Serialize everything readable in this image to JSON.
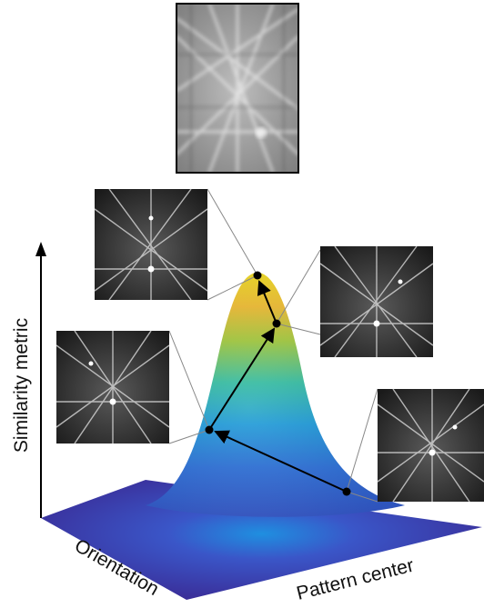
{
  "figure": {
    "axes": {
      "vertical_label": "Similarity metric",
      "left_floor_label": "Orientation",
      "right_floor_label": "Pattern center"
    },
    "patterns": [
      {
        "name": "experimental-pattern",
        "role": "reference pattern",
        "style": "blurred"
      },
      {
        "name": "simulated-pattern-top-left",
        "role": "simulated pattern",
        "style": "sharp"
      },
      {
        "name": "simulated-pattern-top-right",
        "role": "simulated pattern",
        "style": "sharp"
      },
      {
        "name": "simulated-pattern-mid-left",
        "role": "simulated pattern",
        "style": "sharp"
      },
      {
        "name": "simulated-pattern-bottom-right",
        "role": "simulated pattern",
        "style": "sharp"
      }
    ],
    "optimization_path": {
      "point_count": 4,
      "direction": "start at floor, climb to peak"
    },
    "colors": {
      "surface_peak": "#f8e027",
      "surface_mid": "#26b9a3",
      "surface_low": "#2e5fc4",
      "surface_floor": "#3b2a96",
      "pattern_bg": "#222222",
      "axis": "#000000"
    }
  }
}
